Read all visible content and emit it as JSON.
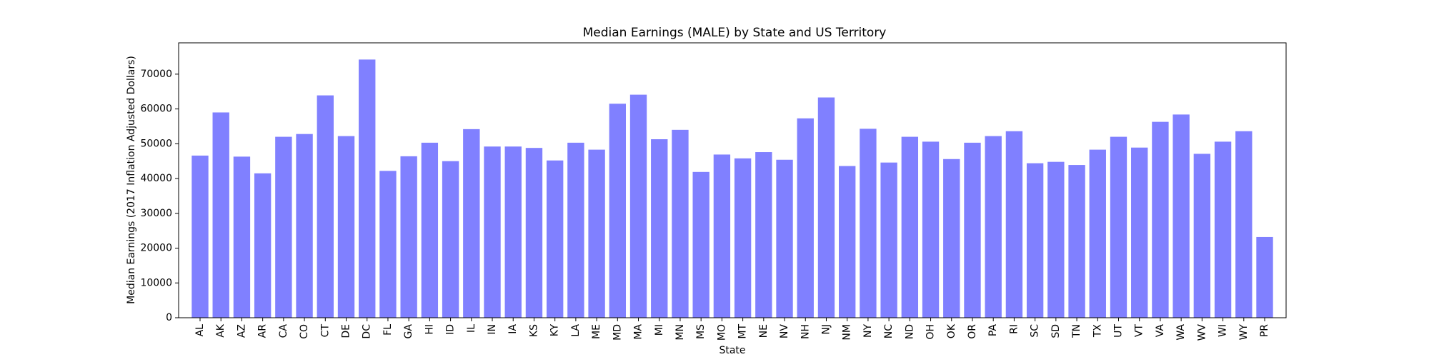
{
  "chart_data": {
    "type": "bar",
    "title": "Median Earnings (MALE) by State and US Territory",
    "xlabel": "State",
    "ylabel": "Median Earnings (2017 Inflation Adjusted Dollars)",
    "ylim": [
      0,
      79000
    ],
    "yticks": [
      0,
      10000,
      20000,
      30000,
      40000,
      50000,
      60000,
      70000
    ],
    "grid": false,
    "bar_color": "#8080ff",
    "categories": [
      "AL",
      "AK",
      "AZ",
      "AR",
      "CA",
      "CO",
      "CT",
      "DE",
      "DC",
      "FL",
      "GA",
      "HI",
      "ID",
      "IL",
      "IN",
      "IA",
      "KS",
      "KY",
      "LA",
      "ME",
      "MD",
      "MA",
      "MI",
      "MN",
      "MS",
      "MO",
      "MT",
      "NE",
      "NV",
      "NH",
      "NJ",
      "NM",
      "NY",
      "NC",
      "ND",
      "OH",
      "OK",
      "OR",
      "PA",
      "RI",
      "SC",
      "SD",
      "TN",
      "TX",
      "UT",
      "VT",
      "VA",
      "WA",
      "WV",
      "WI",
      "WY",
      "PR"
    ],
    "values": [
      46600,
      59000,
      46300,
      41500,
      52000,
      52800,
      63900,
      52200,
      74200,
      42200,
      46400,
      50300,
      45000,
      54200,
      49200,
      49200,
      48800,
      45200,
      50300,
      48300,
      61500,
      64100,
      51300,
      54000,
      41900,
      46900,
      45800,
      47600,
      45400,
      57300,
      63300,
      43600,
      54300,
      44600,
      52000,
      50600,
      45600,
      50300,
      52200,
      53600,
      44400,
      44800,
      43900,
      48300,
      52000,
      48900,
      56300,
      58400,
      47100,
      50600,
      53600,
      23200
    ]
  }
}
